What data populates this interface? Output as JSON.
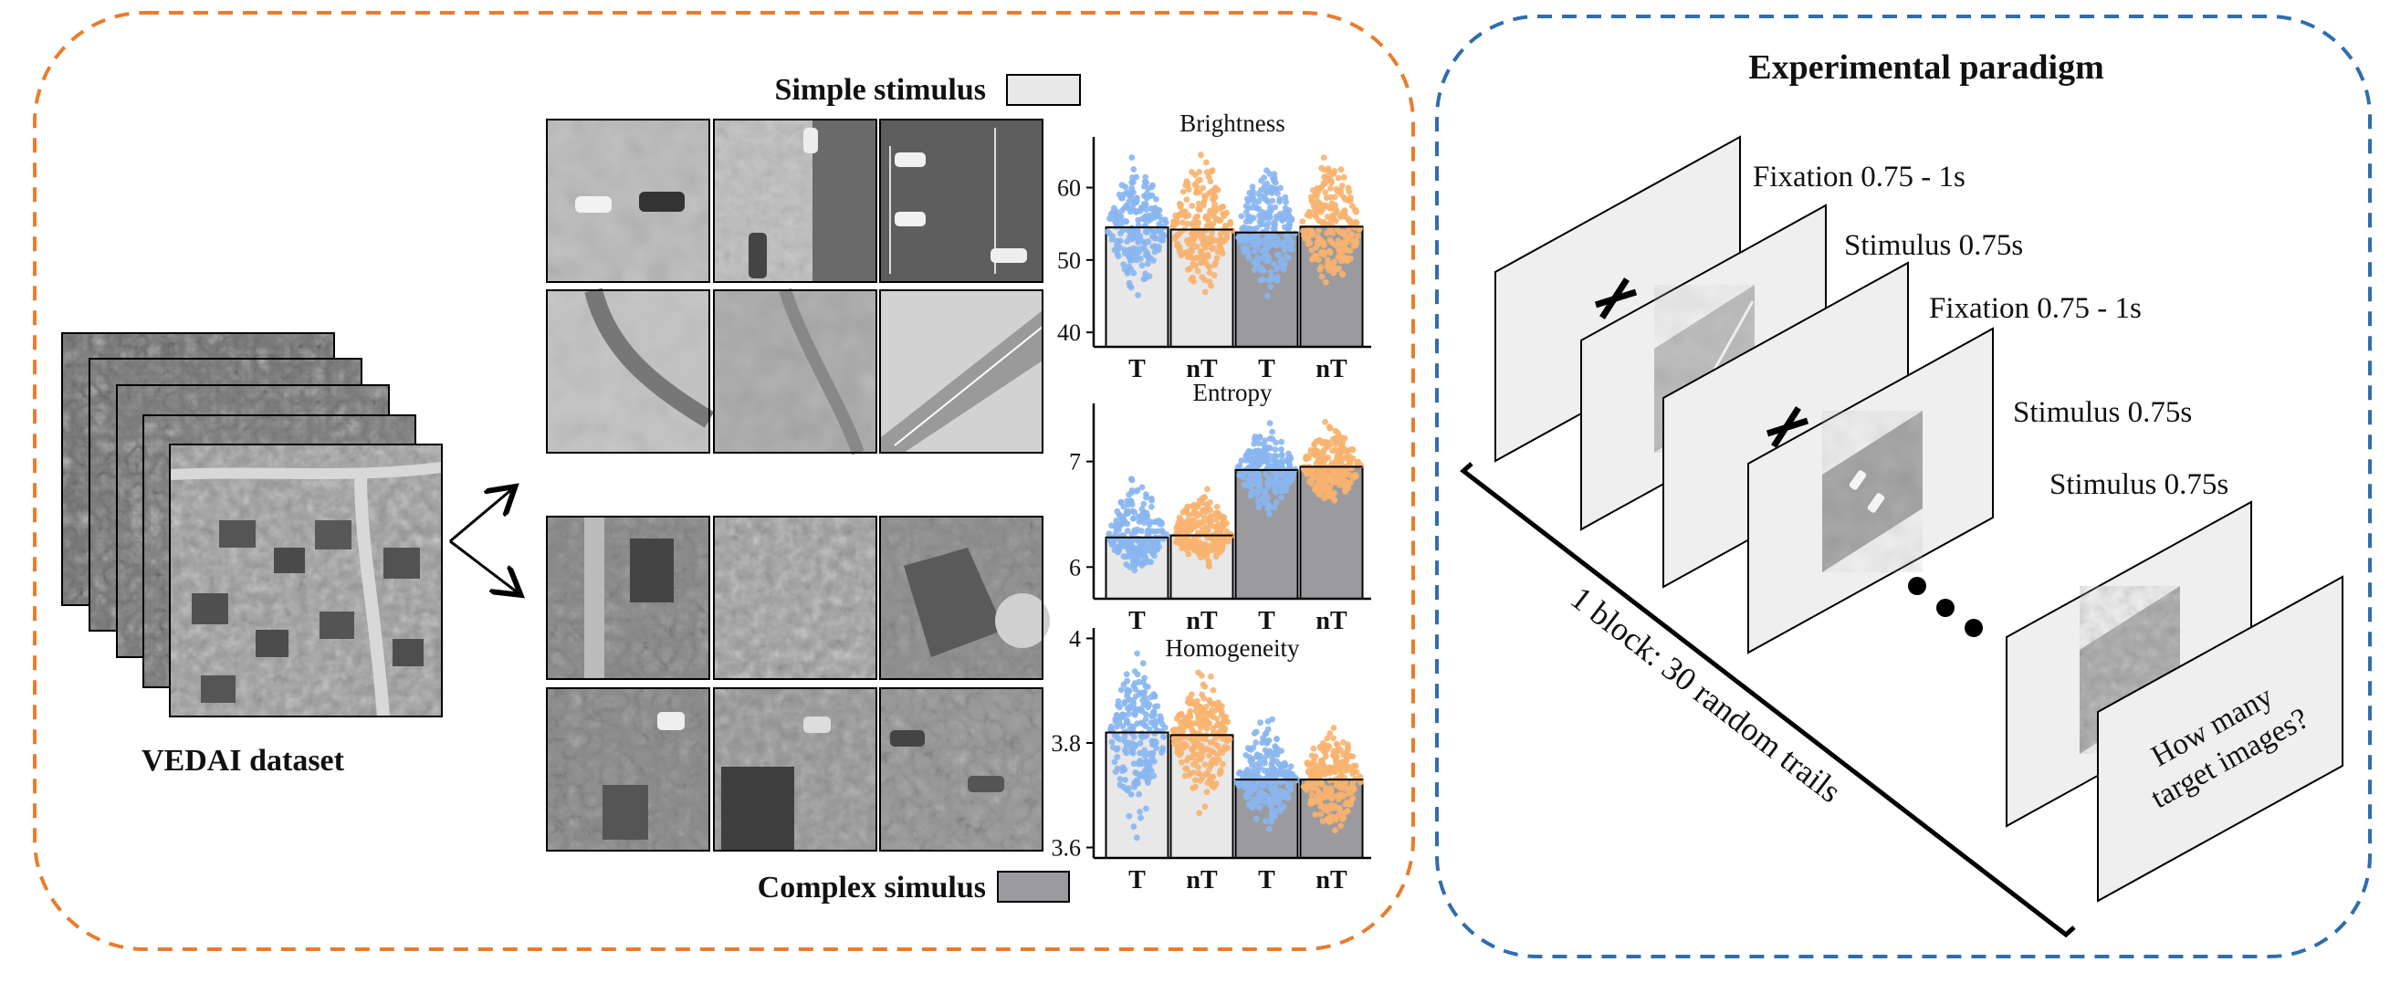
{
  "left_panel": {
    "dataset_label": "VEDAI dataset",
    "simple_legend": "Simple stimulus",
    "complex_legend": "Complex simulus",
    "colors": {
      "border": "#e87d2e",
      "simple_fill": "#e8e8e8",
      "complex_fill": "#9b9b9f"
    }
  },
  "chart_data": [
    {
      "type": "bar",
      "title": "Brightness",
      "categories": [
        "T",
        "nT",
        "T",
        "nT"
      ],
      "values": [
        54.5,
        54.2,
        53.8,
        54.6
      ],
      "bar_groups": [
        "simple",
        "simple",
        "complex",
        "complex"
      ],
      "point_colors": [
        "#8ab6f0",
        "#f7b36f",
        "#8ab6f0",
        "#f7b36f"
      ],
      "point_spread": [
        [
          44,
          65
        ],
        [
          44,
          66
        ],
        [
          43,
          65
        ],
        [
          44,
          66
        ]
      ],
      "yticks": [
        40,
        50,
        60
      ],
      "ylim": [
        38,
        67
      ]
    },
    {
      "type": "bar",
      "title": "Entropy",
      "categories": [
        "T",
        "nT",
        "T",
        "nT"
      ],
      "values": [
        6.28,
        6.3,
        6.92,
        6.95
      ],
      "bar_groups": [
        "simple",
        "simple",
        "complex",
        "complex"
      ],
      "point_colors": [
        "#8ab6f0",
        "#f7b36f",
        "#8ab6f0",
        "#f7b36f"
      ],
      "point_spread": [
        [
          5.9,
          6.95
        ],
        [
          5.95,
          6.85
        ],
        [
          6.45,
          7.4
        ],
        [
          6.5,
          7.45
        ]
      ],
      "yticks": [
        6,
        7
      ],
      "ylim": [
        5.7,
        7.55
      ]
    },
    {
      "type": "bar",
      "title": "Homogeneity",
      "categories": [
        "T",
        "nT",
        "T",
        "nT"
      ],
      "values": [
        3.82,
        3.815,
        3.73,
        3.73
      ],
      "bar_groups": [
        "simple",
        "simple",
        "complex",
        "complex"
      ],
      "point_colors": [
        "#8ab6f0",
        "#f7b36f",
        "#8ab6f0",
        "#f7b36f"
      ],
      "point_spread": [
        [
          3.6,
          3.98
        ],
        [
          3.65,
          3.96
        ],
        [
          3.62,
          3.87
        ],
        [
          3.6,
          3.86
        ]
      ],
      "yticks": [
        3.6,
        3.8,
        4
      ],
      "ylim": [
        3.58,
        4.02
      ]
    }
  ],
  "right_panel": {
    "title": "Experimental paradigm",
    "frames": [
      {
        "label": "Fixation 0.75 - 1s",
        "kind": "fixation"
      },
      {
        "label": "Stimulus 0.75s",
        "kind": "stimulus"
      },
      {
        "label": "Fixation 0.75 - 1s",
        "kind": "fixation"
      },
      {
        "label": "Stimulus 0.75s",
        "kind": "stimulus"
      },
      {
        "label": "Stimulus 0.75s",
        "kind": "stimulus"
      }
    ],
    "question": [
      "How many",
      "target images?"
    ],
    "block_label": "1 block: 30 random trails",
    "colors": {
      "border": "#2e6ead",
      "frame_fill": "#efefef"
    }
  }
}
